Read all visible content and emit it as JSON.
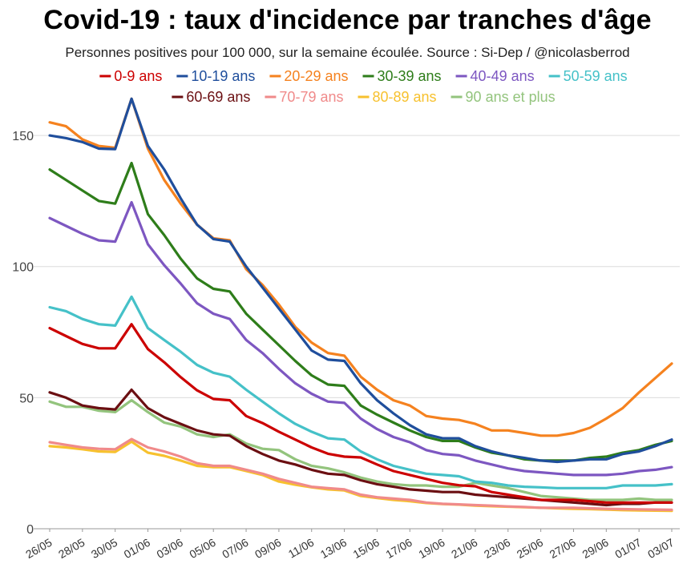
{
  "chart_data": {
    "type": "line",
    "title": "Covid-19 : taux d'incidence par tranches d'âge",
    "subtitle": "Personnes positives pour 100 000, sur la semaine écoulée. Source : Si-Dep / @nicolasberrod",
    "xlabel": "",
    "ylabel": "",
    "ylim": [
      0,
      165
    ],
    "yticks": [
      0,
      50,
      100,
      150
    ],
    "grid": true,
    "legend_position": "top",
    "x": [
      "26/05",
      "27/05",
      "28/05",
      "29/05",
      "30/05",
      "31/05",
      "01/06",
      "02/06",
      "03/06",
      "04/06",
      "05/06",
      "06/06",
      "07/06",
      "08/06",
      "09/06",
      "10/06",
      "11/06",
      "12/06",
      "13/06",
      "14/06",
      "15/06",
      "16/06",
      "17/06",
      "18/06",
      "19/06",
      "20/06",
      "21/06",
      "22/06",
      "23/06",
      "24/06",
      "25/06",
      "26/06",
      "27/06",
      "28/06",
      "29/06",
      "30/06",
      "01/07",
      "02/07",
      "03/07"
    ],
    "xtick_labels": [
      "26/05",
      "28/05",
      "30/05",
      "01/06",
      "03/06",
      "05/06",
      "07/06",
      "09/06",
      "11/06",
      "13/06",
      "15/06",
      "17/06",
      "19/06",
      "21/06",
      "23/06",
      "25/06",
      "27/06",
      "29/06",
      "01/07",
      "03/07"
    ],
    "series": [
      {
        "name": "0-9 ans",
        "color": "#cc0000",
        "values": [
          76.5,
          73.5,
          70.5,
          68.8,
          68.8,
          78,
          68.5,
          63.5,
          57.8,
          52.8,
          49.5,
          49,
          43,
          40.3,
          37,
          34,
          31,
          28.6,
          27.5,
          27.2,
          24.5,
          22,
          20.5,
          19,
          17.5,
          16.6,
          16.2,
          14,
          13,
          12,
          11,
          11,
          11,
          10.5,
          10,
          10,
          10,
          10,
          10
        ]
      },
      {
        "name": "10-19 ans",
        "color": "#1f4e9c",
        "values": [
          150,
          149,
          147.5,
          145,
          144.8,
          164,
          146,
          137,
          126,
          116,
          110.5,
          109.5,
          100,
          92,
          84,
          76,
          68,
          64.5,
          64,
          55.5,
          49,
          44,
          39.5,
          36,
          34.5,
          34.5,
          31.5,
          29.5,
          28,
          27,
          26,
          25.5,
          26,
          26.5,
          26.5,
          28.5,
          29.5,
          31.5,
          34
        ]
      },
      {
        "name": "20-29 ans",
        "color": "#f5821f",
        "values": [
          155,
          153.5,
          148.5,
          146,
          145.3,
          164,
          145,
          133,
          124,
          116,
          110.8,
          110,
          99,
          93,
          85.5,
          77,
          71,
          67,
          66,
          58,
          53,
          49,
          47,
          43,
          42,
          41.5,
          40,
          37.5,
          37.5,
          36.5,
          35.5,
          35.5,
          36.5,
          38.5,
          42,
          46,
          52,
          57.5,
          63
        ]
      },
      {
        "name": "30-39 ans",
        "color": "#2e7d1a",
        "values": [
          137,
          133,
          129,
          125,
          124,
          139.5,
          120,
          112,
          103,
          95.5,
          91.5,
          90.5,
          82,
          76,
          70,
          64,
          58.5,
          55,
          54.5,
          47,
          43.5,
          40.5,
          37.5,
          35,
          33.5,
          33.5,
          31,
          29,
          28,
          26.5,
          26,
          26,
          26,
          27,
          27.5,
          29,
          30,
          32,
          33.5
        ]
      },
      {
        "name": "40-49 ans",
        "color": "#7d57c1",
        "values": [
          118.5,
          115.5,
          112.5,
          110,
          109.5,
          124.5,
          108.5,
          100.5,
          93.5,
          86,
          82,
          80,
          72,
          67,
          61,
          55.5,
          51.5,
          48.5,
          48,
          42,
          38,
          35,
          33,
          30,
          28.5,
          28,
          26,
          24.5,
          23,
          22,
          21.5,
          21,
          20.5,
          20.5,
          20.5,
          21,
          22,
          22.5,
          23.5
        ]
      },
      {
        "name": "50-59 ans",
        "color": "#45c1c8",
        "values": [
          84.5,
          83,
          80,
          78,
          77.5,
          88.5,
          76.5,
          72,
          67.5,
          62.5,
          59.5,
          58,
          53,
          48.5,
          44,
          40,
          37,
          34.5,
          34,
          29.5,
          26.5,
          24,
          22.5,
          21,
          20.5,
          20,
          18,
          17.5,
          16.5,
          16,
          15.8,
          15.5,
          15.5,
          15.5,
          15.5,
          16.5,
          16.5,
          16.5,
          17
        ]
      },
      {
        "name": "60-69 ans",
        "color": "#6b0f12",
        "values": [
          52,
          50,
          47,
          46,
          45.5,
          53,
          46,
          42.5,
          40,
          37.5,
          36,
          35.5,
          31.5,
          28.5,
          26,
          24.5,
          22.5,
          21,
          20.5,
          18.5,
          17,
          16,
          15,
          14.5,
          14,
          14,
          13,
          12.5,
          12,
          11.5,
          11,
          10.5,
          10,
          9.5,
          9,
          9.5,
          9.5,
          10,
          10
        ]
      },
      {
        "name": "70-79 ans",
        "color": "#f08a8a",
        "values": [
          33,
          32,
          31,
          30.5,
          30.3,
          34.2,
          31,
          29.5,
          27.5,
          25,
          24,
          24,
          22.5,
          21,
          19,
          17.5,
          16,
          15.5,
          15,
          13,
          12,
          11.5,
          11,
          10,
          9.5,
          9.3,
          9,
          8.8,
          8.5,
          8.3,
          8,
          8,
          8,
          7.8,
          7.6,
          7.5,
          7.4,
          7.3,
          7.2
        ]
      },
      {
        "name": "80-89 ans",
        "color": "#f7c12e",
        "values": [
          31.5,
          31,
          30.3,
          29.5,
          29.3,
          33.2,
          29,
          27.8,
          26,
          24,
          23.5,
          23.5,
          22,
          20.5,
          18,
          16.8,
          15.8,
          15,
          14.6,
          12.5,
          11.7,
          11,
          10.5,
          9.8,
          9.4,
          9.2,
          8.8,
          8.6,
          8.4,
          8.2,
          8,
          7.8,
          7.6,
          7.5,
          7.3,
          7.1,
          7,
          6.9,
          6.8
        ]
      },
      {
        "name": "90 ans et plus",
        "color": "#93c47d",
        "values": [
          48.5,
          46.5,
          46.5,
          45,
          44.5,
          49,
          44.5,
          40.5,
          39,
          36,
          35,
          36,
          32.5,
          30.5,
          30,
          26.5,
          24,
          23,
          21.5,
          19.5,
          18,
          17,
          16.5,
          16.5,
          16,
          16,
          17.5,
          16.5,
          15.5,
          14,
          12.5,
          12,
          11.5,
          11,
          11,
          11,
          11.5,
          11,
          11
        ]
      }
    ]
  }
}
